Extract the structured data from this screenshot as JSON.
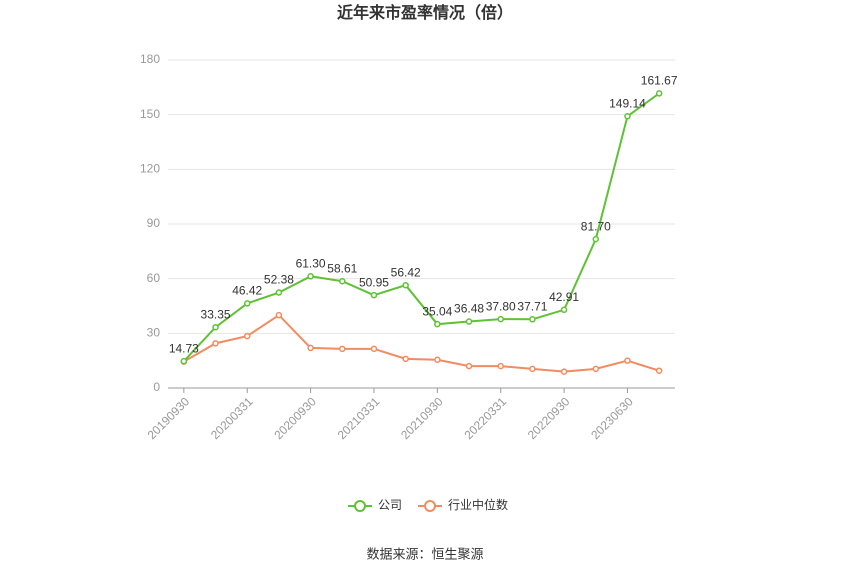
{
  "chart_data": {
    "type": "line",
    "title": "近年来市盈率情况（倍）",
    "categories": [
      "20190930",
      null,
      "20200331",
      null,
      "20200930",
      null,
      "20210331",
      null,
      "20210930",
      null,
      "20220331",
      null,
      "20220930",
      null,
      "20230630",
      null
    ],
    "series": [
      {
        "name": "公司",
        "color": "#5ec235",
        "values": [
          14.73,
          33.35,
          46.42,
          52.38,
          61.3,
          58.61,
          50.95,
          56.42,
          35.04,
          36.48,
          37.8,
          37.71,
          42.91,
          81.7,
          149.14,
          161.67
        ],
        "value_labels": [
          "14.73",
          "33.35",
          "46.42",
          "52.38",
          "61.30",
          "58.61",
          "50.95",
          "56.42",
          "35.04",
          "36.48",
          "37.80",
          "37.71",
          "42.91",
          "81.70",
          "149.14",
          "161.67"
        ]
      },
      {
        "name": "行业中位数",
        "color": "#f28b5e",
        "values": [
          14.5,
          24.5,
          28.5,
          40,
          22,
          21.5,
          21.5,
          16,
          15.5,
          12,
          12,
          10.5,
          9,
          10.5,
          15,
          9.5
        ]
      }
    ],
    "ylim": [
      0,
      180
    ],
    "yticks": [
      0,
      30,
      60,
      90,
      120,
      150,
      180
    ],
    "grid": true,
    "legend": "bottom",
    "source": "数据来源：恒生聚源"
  }
}
